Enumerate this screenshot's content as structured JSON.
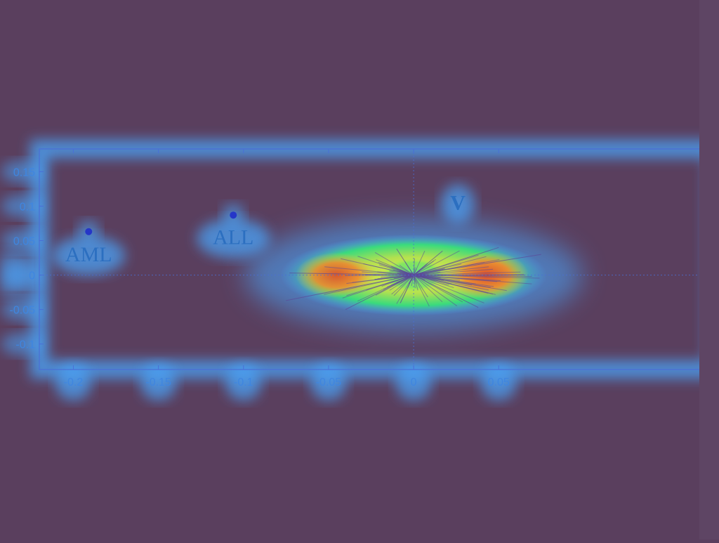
{
  "colors": {
    "background": "#5a3f5e",
    "glow": "#4aa8ff",
    "glow_core": "#8fd0ff",
    "axis": "#4a6fd6",
    "tick_text": "#3f86e0",
    "label_text": "#2c6fc0",
    "marker": "#2536c8",
    "heat_green": "#38e07a",
    "heat_yellow": "#eef048",
    "heat_red": "#e04a2a",
    "line": "#5b4a9a"
  },
  "chart_data": {
    "type": "scatter",
    "title": "",
    "xlabel": "",
    "ylabel": "",
    "xlim": [
      -0.22,
      0.177
    ],
    "ylim": [
      -0.137,
      0.183
    ],
    "xticks": [
      -0.2,
      -0.15,
      -0.1,
      -0.05,
      0,
      0.05
    ],
    "xtick_labels": [
      "-0.2",
      "-0.15",
      "-0.1",
      "-0.05",
      "0",
      "0.05"
    ],
    "yticks": [
      0.15,
      0.1,
      0.05,
      0,
      -0.05,
      -0.1
    ],
    "ytick_labels": [
      "0.15",
      "0.1",
      "0.05",
      "0",
      "-0.05",
      "-0.1"
    ],
    "grid": "zero-lines-dotted",
    "points": [
      {
        "label": "AML",
        "x": -0.191,
        "y": 0.063
      },
      {
        "label": "ALL",
        "x": -0.106,
        "y": 0.087
      }
    ],
    "annotations": [
      {
        "text": "AML",
        "x": -0.191,
        "y": 0.02
      },
      {
        "text": "ALL",
        "x": -0.106,
        "y": 0.045
      },
      {
        "text": "V",
        "x": 0.026,
        "y": 0.095
      }
    ],
    "vectors": {
      "origin": [
        0.0,
        0.0
      ],
      "description_count": 160,
      "x_spread": [
        -0.073,
        0.075
      ],
      "y_spread": [
        -0.1,
        0.08
      ]
    }
  }
}
